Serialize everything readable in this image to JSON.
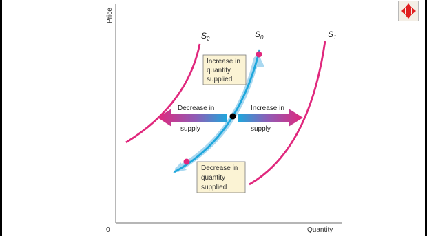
{
  "axes": {
    "y_label": "Price",
    "x_label": "Quantity",
    "origin_label": "0"
  },
  "curves": [
    {
      "id": "s2",
      "main": "S",
      "sub": "2",
      "color": "#e0287d"
    },
    {
      "id": "s0",
      "main": "S",
      "sub": "0",
      "color": "#1ea7dc"
    },
    {
      "id": "s1",
      "main": "S",
      "sub": "1",
      "color": "#e0287d"
    }
  ],
  "annotations": {
    "increase_quantity": [
      "Increase in",
      "quantity",
      "supplied"
    ],
    "decrease_quantity": [
      "Decrease in",
      "quantity",
      "supplied"
    ],
    "decrease_supply": [
      "Decrease in",
      "supply"
    ],
    "increase_supply": [
      "Increase in",
      "supply"
    ]
  },
  "colors": {
    "shift_arrow": "#e0287d",
    "supply_curve": "#1ea7dc",
    "movement_arrow": "#a9d8f0",
    "box_fill": "#fbf3d4",
    "point_upper": "#e0287d",
    "point_lower": "#e0287d",
    "equilibrium_point": "#000000"
  },
  "controls": {
    "nav_icon": "move-arrows-icon"
  }
}
